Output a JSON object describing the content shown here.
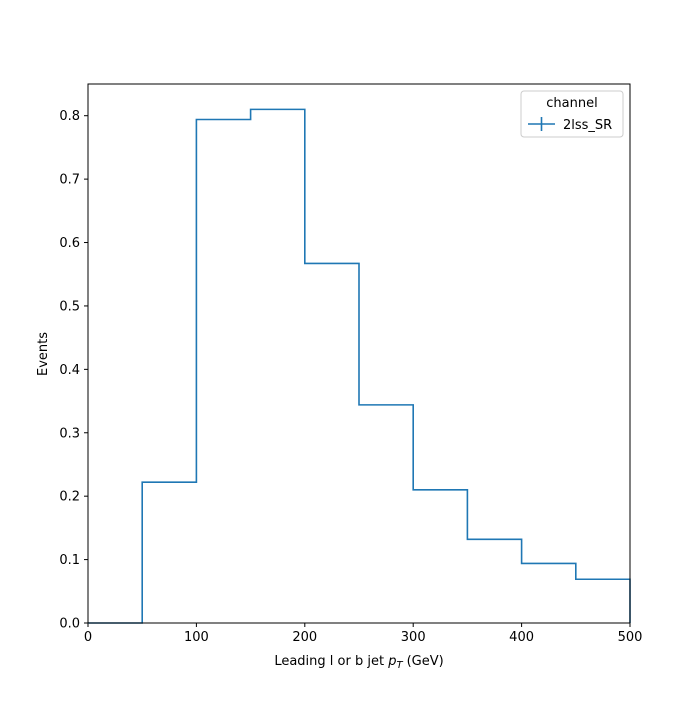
{
  "chart_data": {
    "type": "histogram-step",
    "xlabel": "Leading l or b jet",
    "xlabel_math": "p",
    "xlabel_math_sub": "T",
    "xlabel_unit": "(GeV)",
    "ylabel": "Events",
    "xlim": [
      0,
      500
    ],
    "ylim": [
      0,
      0.85
    ],
    "x_ticks": [
      0,
      100,
      200,
      300,
      400,
      500
    ],
    "x_tick_labels": [
      "0",
      "100",
      "200",
      "300",
      "400",
      "500"
    ],
    "y_ticks": [
      0.0,
      0.1,
      0.2,
      0.3,
      0.4,
      0.5,
      0.6,
      0.7,
      0.8
    ],
    "y_tick_labels": [
      "0.0",
      "0.1",
      "0.2",
      "0.3",
      "0.4",
      "0.5",
      "0.6",
      "0.7",
      "0.8"
    ],
    "bin_edges": [
      0,
      50,
      100,
      150,
      200,
      250,
      300,
      350,
      400,
      450,
      500
    ],
    "series": [
      {
        "name": "2lss_SR",
        "color": "#1f77b4",
        "values": [
          0.0,
          0.222,
          0.794,
          0.81,
          0.567,
          0.344,
          0.21,
          0.132,
          0.094,
          0.069
        ]
      }
    ],
    "legend": {
      "title": "channel",
      "position": "top-right"
    },
    "grid": false
  }
}
